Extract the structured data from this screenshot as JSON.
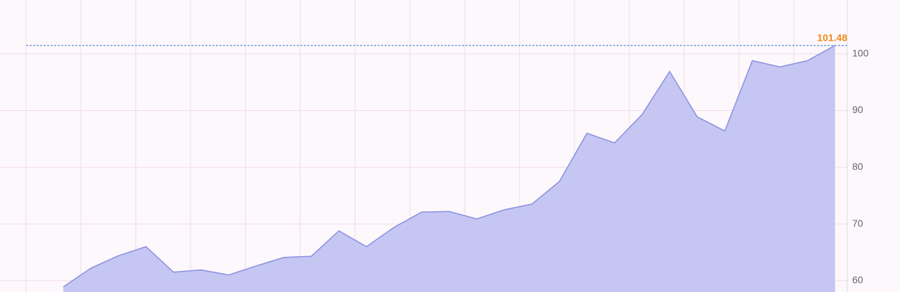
{
  "chart_data": {
    "type": "area",
    "values": [
      58.9,
      62.2,
      64.4,
      66.0,
      61.5,
      61.9,
      61.0,
      62.6,
      64.1,
      64.3,
      68.8,
      66.0,
      69.4,
      72.1,
      72.2,
      70.9,
      72.5,
      73.5,
      77.5,
      86.0,
      84.3,
      89.3,
      96.9,
      88.9,
      86.4,
      98.8,
      97.7,
      98.8,
      101.48
    ],
    "color": "#c5c6f2",
    "line_color": "#8a8fe0",
    "ylim": [
      58,
      109.5
    ],
    "yticks": [
      60,
      70,
      80,
      90,
      100
    ],
    "grid": true,
    "reference_line": {
      "value": 101.48,
      "label": "101.48",
      "color": "#5b8fd6",
      "label_color": "#f08c1a"
    }
  }
}
